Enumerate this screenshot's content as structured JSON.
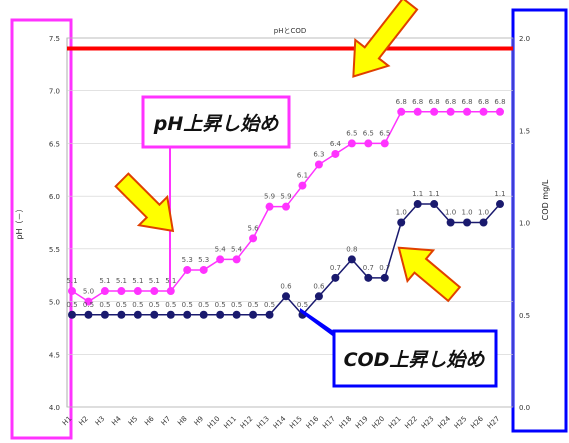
{
  "chart_data": {
    "type": "line",
    "title": "pHとCOD",
    "y_left_label": "pH（－）",
    "y_right_label": "COD mg/L",
    "y_left_range": [
      4.0,
      7.5
    ],
    "y_left_ticks": [
      "4.0",
      "4.5",
      "5.0",
      "5.5",
      "6.0",
      "6.5",
      "7.0",
      "7.5"
    ],
    "y_right_range": [
      0.0,
      2.0
    ],
    "y_right_ticks": [
      "0.0",
      "0.5",
      "1.0",
      "1.5",
      "2.0"
    ],
    "x_ticks": [
      "H1",
      "H2",
      "H3",
      "H4",
      "H5",
      "H6",
      "H7",
      "H8",
      "H9",
      "H10",
      "H11",
      "H12",
      "H13",
      "H14",
      "H15",
      "H16",
      "H17",
      "H18",
      "H19",
      "H20",
      "H21",
      "H22",
      "H23",
      "H24",
      "H25",
      "H26",
      "H27"
    ],
    "reference_line": {
      "value": 7.4,
      "color": "#ff0000"
    },
    "series": [
      {
        "axis": "left",
        "color": "#ff33ff",
        "values": [
          5.1,
          5.0,
          5.1,
          5.1,
          5.1,
          5.1,
          5.1,
          5.3,
          5.3,
          5.4,
          5.4,
          5.6,
          5.9,
          5.9,
          6.1,
          6.3,
          6.4,
          6.5,
          6.5,
          6.5,
          6.8,
          6.8,
          6.8,
          6.8,
          6.8,
          6.8,
          6.8
        ],
        "labels": [
          "5.1",
          "5.0",
          "5.1",
          "5.1",
          "5.1",
          "5.1",
          "5.1",
          "5.3",
          "5.3",
          "5.4",
          "5.4",
          "5.6",
          "5.9",
          "5.9",
          "6.1",
          "6.3",
          "6.4",
          "6.5",
          "6.5",
          "6.5",
          "6.8",
          "6.8",
          "6.8",
          "6.8",
          "6.8",
          "6.8",
          "6.8"
        ]
      },
      {
        "axis": "right",
        "color": "#1a1a6e",
        "values": [
          0.5,
          0.5,
          0.5,
          0.5,
          0.5,
          0.5,
          0.5,
          0.5,
          0.5,
          0.5,
          0.5,
          0.5,
          0.5,
          0.6,
          0.5,
          0.6,
          0.7,
          0.8,
          0.7,
          0.7,
          1.0,
          1.1,
          1.1,
          1.0,
          1.0,
          1.0,
          1.1
        ],
        "labels": [
          "0.5",
          "0.5",
          "0.5",
          "0.5",
          "0.5",
          "0.5",
          "0.5",
          "0.5",
          "0.5",
          "0.5",
          "0.5",
          "0.5",
          "0.5",
          "0.6",
          "0.5",
          "0.6",
          "0.7",
          "0.8",
          "0.7",
          "0.7",
          "1.0",
          "1.1",
          "1.1",
          "1.0",
          "1.0",
          "1.0",
          "1.1"
        ]
      }
    ],
    "annotations": {
      "ph_callout": "pH上昇し始め",
      "cod_callout": "COD上昇し始め"
    }
  },
  "colors": {
    "left_axis_frame": "#ff33ff",
    "right_axis_frame": "#0000ff",
    "arrow_fill": "#ffff00",
    "arrow_stroke": "#e04000"
  }
}
